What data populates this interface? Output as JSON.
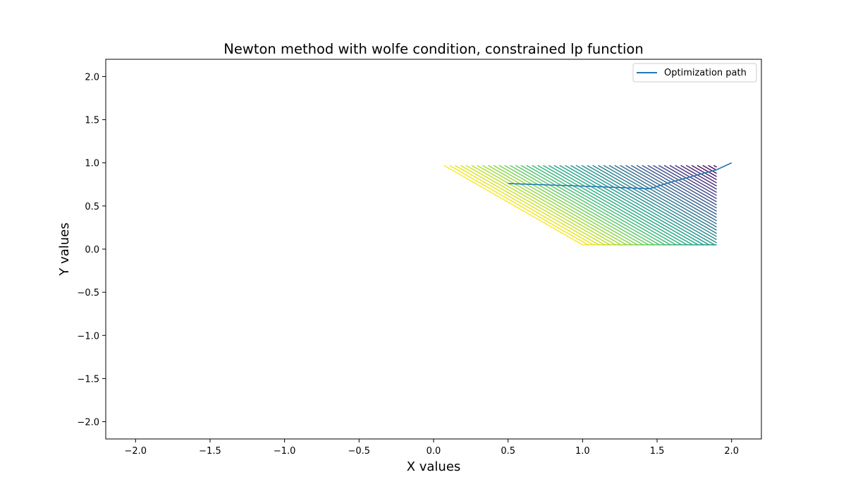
{
  "chart_data": {
    "type": "line",
    "title": "Newton method with wolfe condition, constrained lp function",
    "xlabel": "X values",
    "ylabel": "Y values",
    "xlim": [
      -2.2,
      2.2
    ],
    "ylim": [
      -2.2,
      2.2
    ],
    "xticks": [
      -2.0,
      -1.5,
      -1.0,
      -0.5,
      0.0,
      0.5,
      1.0,
      1.5,
      2.0
    ],
    "yticks": [
      -2.0,
      -1.5,
      -1.0,
      -0.5,
      0.0,
      0.5,
      1.0,
      1.5,
      2.0
    ],
    "xtick_labels": [
      "−2.0",
      "−1.5",
      "−1.0",
      "−0.5",
      "0.0",
      "0.5",
      "1.0",
      "1.5",
      "2.0"
    ],
    "ytick_labels": [
      "−2.0",
      "−1.5",
      "−1.0",
      "−0.5",
      "0.0",
      "0.5",
      "1.0",
      "1.5",
      "2.0"
    ],
    "grid": false,
    "legend": {
      "position": "top-right",
      "entries": [
        "Optimization path"
      ]
    },
    "series": [
      {
        "name": "Optimization path",
        "color": "#1f77b4",
        "x": [
          2.0,
          1.9,
          1.6,
          1.45,
          1.0,
          0.5
        ],
        "y": [
          1.0,
          0.92,
          0.78,
          0.7,
          0.73,
          0.76
        ]
      }
    ],
    "contour": {
      "colormap": "viridis",
      "level_count": 50,
      "region": {
        "x_max": 1.9,
        "y_min": 0.05,
        "y_max": 0.97
      },
      "contour_slope": -0.99,
      "level_x_at_top_range": [
        0.07,
        1.88
      ],
      "level_x_at_bottom": [
        0.96,
        1.9
      ]
    }
  }
}
